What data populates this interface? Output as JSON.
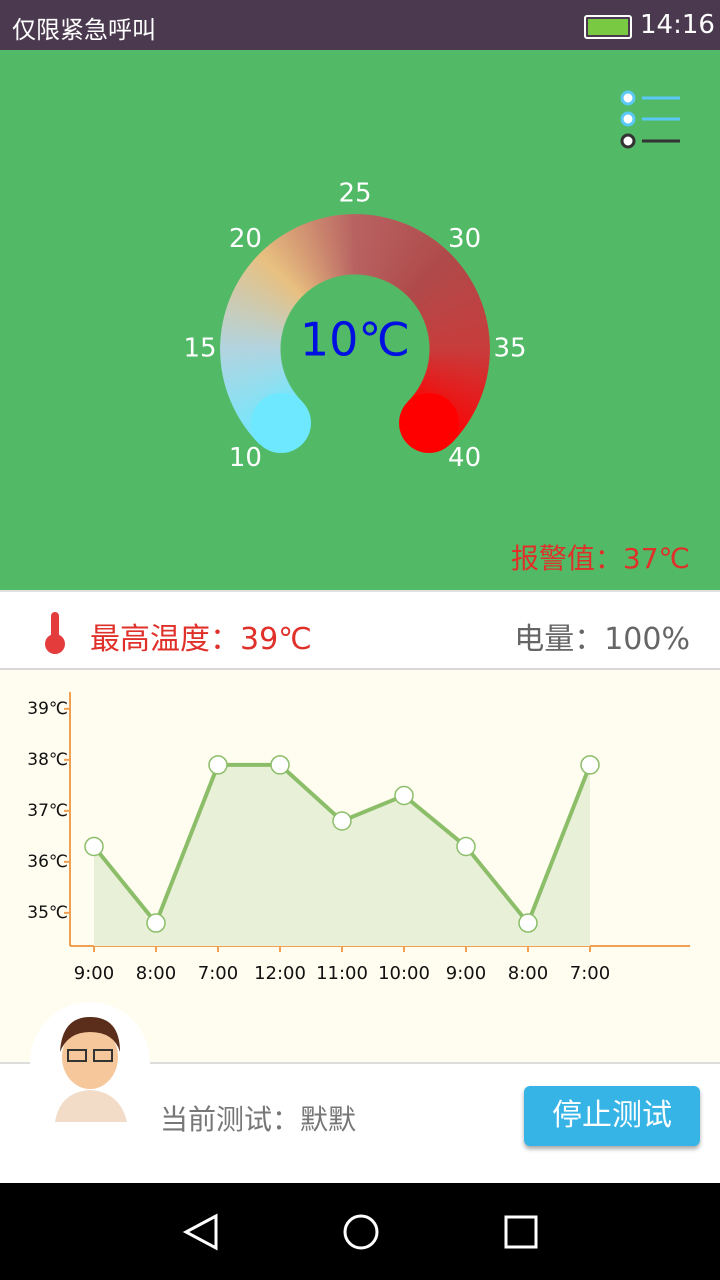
{
  "status_bar": {
    "carrier": "仅限紧急呼叫",
    "time": "14:16"
  },
  "gauge": {
    "value": 10,
    "value_label": "10℃",
    "ticks": [
      10,
      15,
      20,
      25,
      30,
      35,
      40
    ]
  },
  "alarm": "报警值：37℃",
  "max_temp": "最高温度：39℃",
  "battery": "电量：100%",
  "chart_data": {
    "type": "line",
    "categories": [
      "9:00",
      "8:00",
      "7:00",
      "12:00",
      "11:00",
      "10:00",
      "9:00",
      "8:00",
      "7:00"
    ],
    "values": [
      36.3,
      34.8,
      37.9,
      37.9,
      36.8,
      37.3,
      36.3,
      34.8,
      37.9
    ],
    "color": "#8cbe6a",
    "ylim": [
      34.35,
      39.33
    ],
    "yticks": [
      {
        "value": 35,
        "label": "35℃"
      },
      {
        "value": 36,
        "label": "36℃"
      },
      {
        "value": 37,
        "label": "37℃"
      },
      {
        "value": 38,
        "label": "38℃"
      },
      {
        "value": 39,
        "label": "39℃"
      }
    ],
    "grid": false
  },
  "footer": {
    "current_test": "当前测试：默默",
    "stop_button": "停止测试"
  }
}
